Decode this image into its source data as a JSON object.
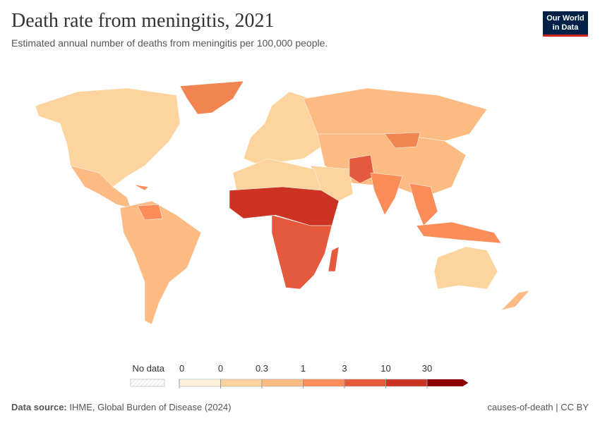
{
  "header": {
    "title": "Death rate from meningitis, 2021",
    "subtitle": "Estimated annual number of deaths from meningitis per 100,000 people.",
    "logo": [
      "Our World",
      "in Data"
    ]
  },
  "legend": {
    "no_data": "No data",
    "ticks": [
      "0",
      "0",
      "0.3",
      "1",
      "3",
      "10",
      "30"
    ],
    "colors": [
      "#fef0d9",
      "#fdd49e",
      "#fdbb84",
      "#fc8d59",
      "#e55a3d",
      "#cc3322",
      "#8b0000"
    ]
  },
  "footer": {
    "source_label": "Data source:",
    "source": "IHME, Global Burden of Disease (2024)",
    "right": "causes-of-death | CC BY"
  }
}
